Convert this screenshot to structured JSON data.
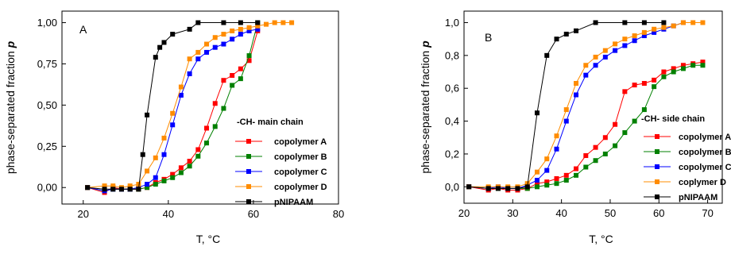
{
  "chart_data": [
    {
      "type": "line",
      "panel_label": "A",
      "xlabel": "T, °C",
      "ylabel": "phase-separated fraction",
      "ylabel_symbol": "p",
      "xlim": [
        15,
        80
      ],
      "ylim": [
        -0.1,
        1.07
      ],
      "xticks": [
        20,
        40,
        60,
        80
      ],
      "yticks": [
        0.0,
        0.25,
        0.5,
        0.75,
        1.0
      ],
      "ytick_labels": [
        "0,00",
        "0,25",
        "0,50",
        "0,75",
        "1,00"
      ],
      "grid": false,
      "legend": {
        "title": "-CH- main chain",
        "placement": "lower-right",
        "entries": [
          "copolymer A",
          "copolymer B",
          "copolymer C",
          "copolymer D",
          "pNIPAAM"
        ]
      },
      "series": [
        {
          "name": "copolymer A",
          "color": "#ff0000",
          "x": [
            21,
            25,
            27,
            29,
            31,
            33,
            35,
            37,
            39,
            41,
            43,
            45,
            47,
            49,
            51,
            53,
            55,
            57,
            59,
            61
          ],
          "y": [
            0.0,
            -0.03,
            0.0,
            -0.01,
            -0.01,
            -0.01,
            0.0,
            0.03,
            0.05,
            0.08,
            0.12,
            0.16,
            0.23,
            0.36,
            0.51,
            0.65,
            0.68,
            0.72,
            0.77,
            0.95
          ]
        },
        {
          "name": "copolymer B",
          "color": "#008000",
          "x": [
            21,
            25,
            27,
            29,
            31,
            33,
            35,
            37,
            39,
            41,
            43,
            45,
            47,
            49,
            51,
            53,
            55,
            57,
            59,
            61
          ],
          "y": [
            0.0,
            -0.02,
            -0.01,
            -0.01,
            -0.01,
            -0.01,
            0.0,
            0.02,
            0.04,
            0.06,
            0.09,
            0.13,
            0.19,
            0.27,
            0.37,
            0.48,
            0.62,
            0.66,
            0.8,
            1.0
          ]
        },
        {
          "name": "copolymer C",
          "color": "#0000ff",
          "x": [
            21,
            25,
            27,
            29,
            31,
            33,
            35,
            37,
            39,
            41,
            43,
            45,
            47,
            49,
            51,
            53,
            55,
            57,
            59,
            61
          ],
          "y": [
            0.0,
            -0.02,
            -0.01,
            -0.01,
            -0.01,
            0.0,
            0.02,
            0.06,
            0.2,
            0.38,
            0.56,
            0.69,
            0.78,
            0.82,
            0.85,
            0.87,
            0.9,
            0.93,
            0.95,
            0.96
          ]
        },
        {
          "name": "copolymer D",
          "color": "#ff8c00",
          "x": [
            21,
            25,
            27,
            29,
            31,
            33,
            35,
            37,
            39,
            41,
            43,
            45,
            47,
            49,
            51,
            53,
            55,
            57,
            59,
            61,
            63,
            65,
            67,
            69
          ],
          "y": [
            0.0,
            0.01,
            0.01,
            0.0,
            0.01,
            0.02,
            0.1,
            0.18,
            0.3,
            0.45,
            0.61,
            0.78,
            0.82,
            0.87,
            0.91,
            0.93,
            0.95,
            0.96,
            0.97,
            0.98,
            0.99,
            1.0,
            1.0,
            1.0
          ]
        },
        {
          "name": "pNIPAAM",
          "color": "#000000",
          "x": [
            21,
            25,
            27,
            29,
            31,
            33,
            34,
            35,
            37,
            38,
            39,
            41,
            45,
            47,
            53,
            57,
            61
          ],
          "y": [
            0.0,
            -0.01,
            -0.01,
            -0.01,
            -0.01,
            -0.01,
            0.2,
            0.44,
            0.79,
            0.85,
            0.88,
            0.93,
            0.96,
            1.0,
            1.0,
            1.0,
            1.0
          ]
        }
      ]
    },
    {
      "type": "line",
      "panel_label": "B",
      "xlabel": "T, °C",
      "ylabel": "phase-separated fraction",
      "ylabel_symbol": "p",
      "xlim": [
        20,
        73
      ],
      "ylim": [
        -0.1,
        1.07
      ],
      "xticks": [
        20,
        30,
        40,
        50,
        60,
        70
      ],
      "yticks": [
        0.0,
        0.2,
        0.4,
        0.6,
        0.8,
        1.0
      ],
      "ytick_labels": [
        "0,0",
        "0,2",
        "0,4",
        "0,6",
        "0,8",
        "1,0"
      ],
      "grid": false,
      "legend": {
        "title": "-CH- side chain",
        "placement": "lower-right",
        "entries": [
          "copolymer A",
          "copolymer B",
          "copolymer C",
          "coplymer D",
          "pNIPAAM"
        ]
      },
      "series": [
        {
          "name": "copolymer A",
          "color": "#ff0000",
          "x": [
            21,
            25,
            27,
            29,
            31,
            33,
            35,
            37,
            39,
            41,
            43,
            45,
            47,
            49,
            51,
            53,
            55,
            57,
            59,
            61,
            63,
            65,
            67,
            69
          ],
          "y": [
            0.0,
            -0.02,
            -0.01,
            -0.02,
            -0.02,
            -0.01,
            0.02,
            0.03,
            0.05,
            0.07,
            0.11,
            0.19,
            0.24,
            0.3,
            0.38,
            0.58,
            0.62,
            0.63,
            0.65,
            0.7,
            0.72,
            0.74,
            0.75,
            0.76
          ]
        },
        {
          "name": "copolymer B",
          "color": "#008000",
          "x": [
            21,
            25,
            27,
            29,
            31,
            33,
            35,
            37,
            39,
            41,
            43,
            45,
            47,
            49,
            51,
            53,
            55,
            57,
            59,
            61,
            63,
            65,
            67,
            69
          ],
          "y": [
            0.0,
            -0.01,
            -0.01,
            -0.01,
            -0.01,
            -0.01,
            0.0,
            0.01,
            0.02,
            0.04,
            0.07,
            0.12,
            0.16,
            0.2,
            0.25,
            0.33,
            0.4,
            0.47,
            0.61,
            0.67,
            0.7,
            0.72,
            0.74,
            0.74
          ]
        },
        {
          "name": "copolymer C",
          "color": "#0000ff",
          "x": [
            21,
            25,
            27,
            29,
            31,
            33,
            35,
            37,
            39,
            41,
            43,
            45,
            47,
            49,
            51,
            53,
            55,
            57,
            59,
            61,
            63,
            65
          ],
          "y": [
            0.0,
            -0.01,
            0.0,
            -0.01,
            -0.01,
            0.01,
            0.04,
            0.1,
            0.23,
            0.4,
            0.56,
            0.68,
            0.74,
            0.79,
            0.83,
            0.86,
            0.89,
            0.92,
            0.94,
            0.96,
            0.98,
            1.0
          ]
        },
        {
          "name": "coplymer D",
          "color": "#ff8c00",
          "x": [
            21,
            25,
            27,
            29,
            31,
            33,
            35,
            37,
            39,
            41,
            43,
            45,
            47,
            49,
            51,
            53,
            55,
            57,
            59,
            61,
            63,
            65,
            67,
            69
          ],
          "y": [
            0.0,
            0.0,
            0.0,
            0.0,
            0.0,
            0.02,
            0.09,
            0.17,
            0.31,
            0.47,
            0.63,
            0.74,
            0.79,
            0.83,
            0.87,
            0.9,
            0.92,
            0.94,
            0.96,
            0.97,
            0.98,
            1.0,
            1.0,
            1.0
          ]
        },
        {
          "name": "pNIPAAM",
          "color": "#000000",
          "x": [
            21,
            25,
            27,
            29,
            31,
            33,
            35,
            37,
            39,
            41,
            43,
            47,
            53,
            57,
            61
          ],
          "y": [
            0.0,
            -0.01,
            -0.01,
            -0.01,
            -0.01,
            0.0,
            0.45,
            0.8,
            0.9,
            0.93,
            0.95,
            1.0,
            1.0,
            1.0,
            1.0
          ]
        }
      ]
    }
  ]
}
